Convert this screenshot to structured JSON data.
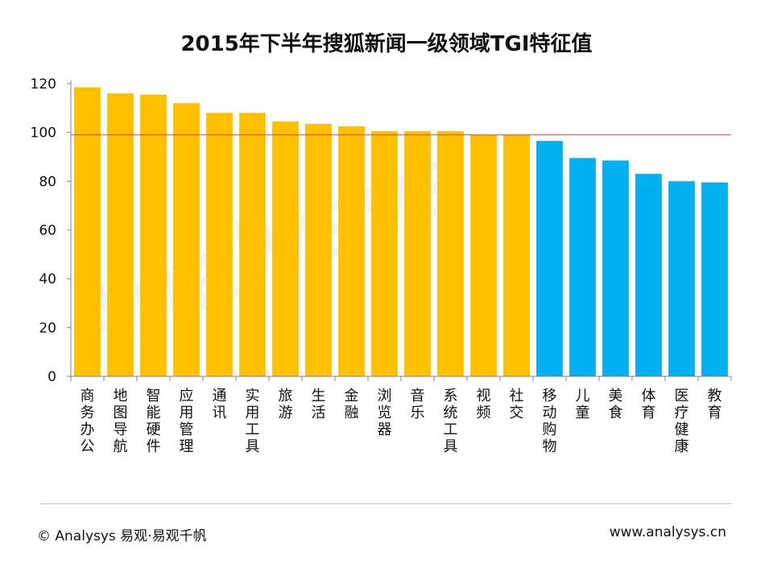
{
  "title": "2015年下半年搜狐新闻一级领域TGI特征值",
  "footer": {
    "copyright": "© Analysys 易观·易观千帆",
    "url": "www.analysys.cn"
  },
  "colors": {
    "above": "#FFC000",
    "below": "#00B0F0",
    "reference": "#E04040",
    "axis": "#808080"
  },
  "chart_data": {
    "type": "bar",
    "title": "2015年下半年搜狐新闻一级领域TGI特征值",
    "xlabel": "",
    "ylabel": "",
    "ylim": [
      0,
      120
    ],
    "yticks": [
      0,
      20,
      40,
      60,
      80,
      100,
      120
    ],
    "reference_line": 99,
    "categories": [
      "商务办公",
      "地图导航",
      "智能硬件",
      "应用管理",
      "通讯",
      "实用工具",
      "旅游",
      "生活",
      "金融",
      "浏览器",
      "音乐",
      "系统工具",
      "视频",
      "社交",
      "移动购物",
      "儿童",
      "美食",
      "体育",
      "医疗健康",
      "教育"
    ],
    "values": [
      118.5,
      116,
      115.5,
      112,
      108,
      108,
      104.5,
      103.5,
      102.5,
      100.5,
      100.5,
      100.5,
      99,
      99,
      96.5,
      89.5,
      88.5,
      83,
      80,
      79.5
    ],
    "color_groups": [
      "above",
      "above",
      "above",
      "above",
      "above",
      "above",
      "above",
      "above",
      "above",
      "above",
      "above",
      "above",
      "above",
      "above",
      "below",
      "below",
      "below",
      "below",
      "below",
      "below"
    ]
  }
}
